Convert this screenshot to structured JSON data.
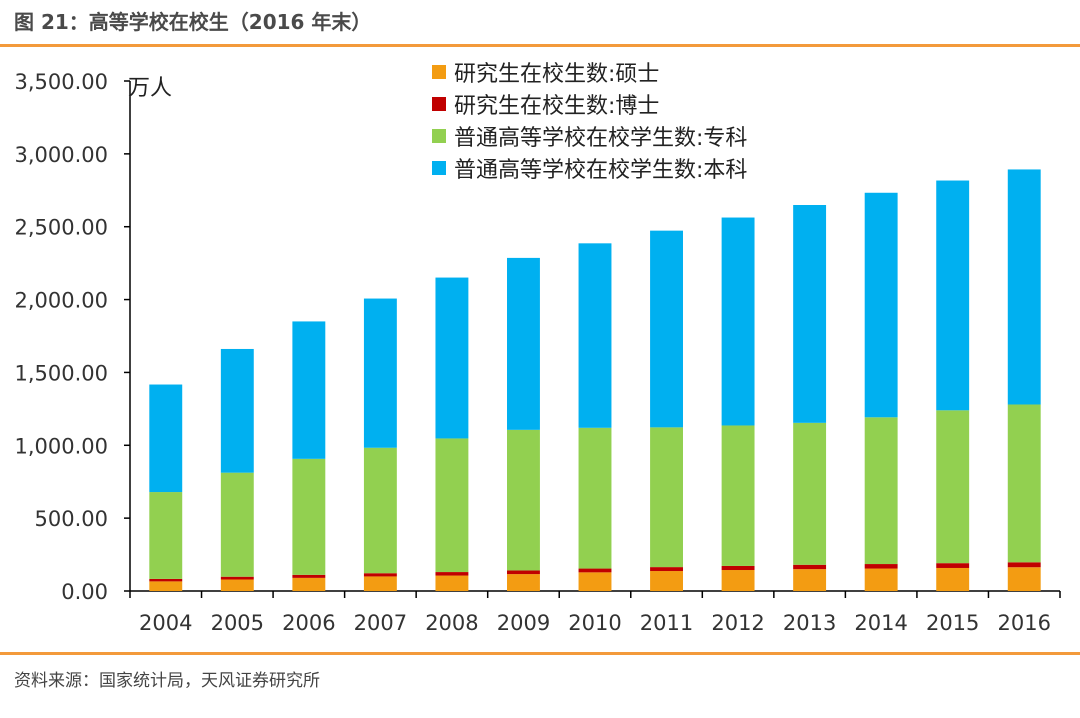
{
  "header": {
    "title": "图 21：高等学校在校生（2016 年末）"
  },
  "footer": {
    "source": "资料来源：国家统计局，天风证券研究所"
  },
  "colors": {
    "accent_rule": "#f39a3b",
    "masters": "#f39c12",
    "doctoral": "#c00000",
    "junior_college": "#92d050",
    "undergraduate": "#00b0f0"
  },
  "chart_data": {
    "type": "bar",
    "stacked": true,
    "unit": "万人",
    "ylim": [
      0,
      3500
    ],
    "yticks": [
      0,
      500,
      1000,
      1500,
      2000,
      2500,
      3000,
      3500
    ],
    "ytick_labels": [
      "0.00",
      "500.00",
      "1,000.00",
      "1,500.00",
      "2,000.00",
      "2,500.00",
      "3,000.00",
      "3,500.00"
    ],
    "categories": [
      "2004",
      "2005",
      "2006",
      "2007",
      "2008",
      "2009",
      "2010",
      "2011",
      "2012",
      "2013",
      "2014",
      "2015",
      "2016"
    ],
    "series": [
      {
        "name": "研究生在校生数:硕士",
        "color": "#f39c12",
        "values": [
          66,
          79,
          90,
          100,
          106,
          116,
          128,
          137,
          144,
          150,
          154,
          158,
          163
        ]
      },
      {
        "name": "研究生在校生数:博士",
        "color": "#c00000",
        "values": [
          17,
          19,
          21,
          22,
          24,
          25,
          26,
          27,
          28,
          30,
          31,
          33,
          34
        ]
      },
      {
        "name": "普通高等学校在校学生数:专科",
        "color": "#92d050",
        "values": [
          596,
          714,
          796,
          861,
          917,
          965,
          966,
          959,
          964,
          974,
          1007,
          1049,
          1083
        ]
      },
      {
        "name": "普通高等学校在校学生数:本科",
        "color": "#00b0f0",
        "values": [
          738,
          849,
          943,
          1024,
          1104,
          1180,
          1266,
          1350,
          1427,
          1495,
          1541,
          1577,
          1613
        ]
      }
    ],
    "legend_position": "top-center"
  }
}
